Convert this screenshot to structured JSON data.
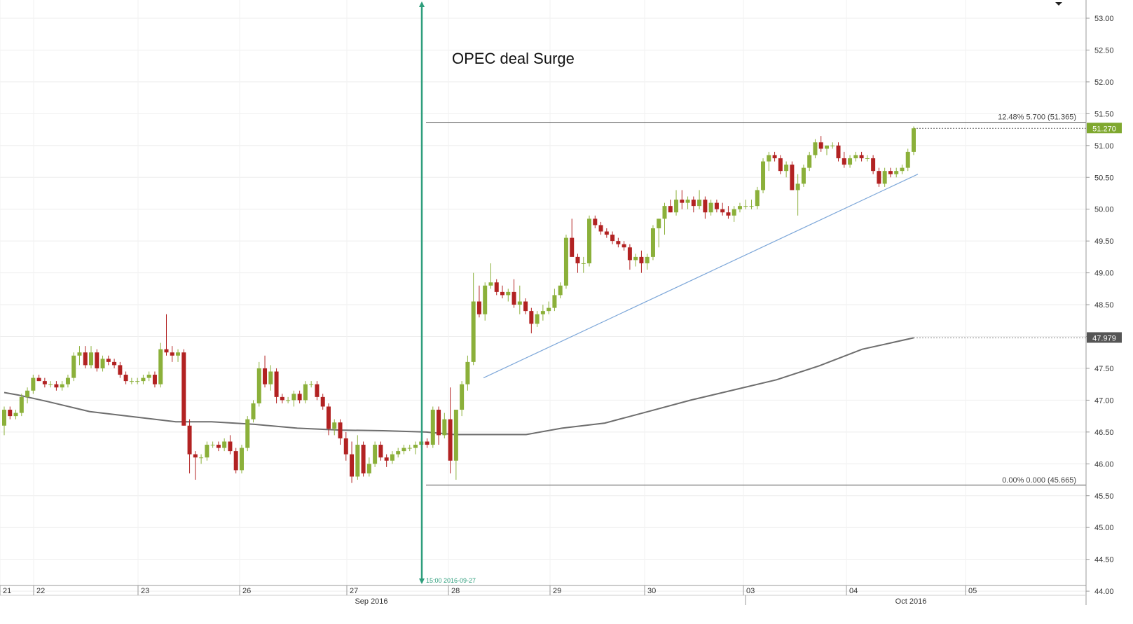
{
  "chart_data": {
    "type": "candlestick",
    "y_axis": {
      "ticks": [
        "53.00",
        "52.50",
        "52.00",
        "51.50",
        "51.00",
        "50.50",
        "50.00",
        "49.50",
        "49.00",
        "48.50",
        "48.00",
        "47.50",
        "47.00",
        "46.50",
        "46.00",
        "45.50",
        "45.00",
        "44.50",
        "44.00"
      ],
      "range": [
        43.75,
        53.3
      ]
    },
    "x_axis": {
      "day_labels": [
        "21",
        "22",
        "23",
        "26",
        "27",
        "28",
        "29",
        "30",
        "03",
        "04",
        "05"
      ],
      "month_labels": [
        "Sep 2016",
        "Oct 2016"
      ]
    },
    "annotation_text": "OPEC deal Surge",
    "vertical_marker_label": "15:00 2016-09-27",
    "fibonacci": {
      "top": {
        "label": "12.48% 5.700 (51.365)",
        "value": 51.365
      },
      "bottom": {
        "label": "0.00% 0.000 (45.665)",
        "value": 45.665
      }
    },
    "last_price_tag": "51.270",
    "last_price": 51.27,
    "ma_tag": "47.979",
    "ma_last": 47.979,
    "candles": [
      [
        46.6,
        46.9,
        46.45,
        46.85
      ],
      [
        46.85,
        46.9,
        46.7,
        46.75
      ],
      [
        46.75,
        46.85,
        46.7,
        46.8
      ],
      [
        46.8,
        47.1,
        46.75,
        47.05
      ],
      [
        47.05,
        47.2,
        46.95,
        47.15
      ],
      [
        47.15,
        47.4,
        47.1,
        47.35
      ],
      [
        47.35,
        47.4,
        47.3,
        47.3
      ],
      [
        47.3,
        47.35,
        47.2,
        47.25
      ],
      [
        47.25,
        47.3,
        47.2,
        47.25
      ],
      [
        47.25,
        47.3,
        47.15,
        47.2
      ],
      [
        47.2,
        47.3,
        47.15,
        47.25
      ],
      [
        47.25,
        47.4,
        47.2,
        47.35
      ],
      [
        47.35,
        47.75,
        47.3,
        47.7
      ],
      [
        47.7,
        47.85,
        47.55,
        47.75
      ],
      [
        47.75,
        47.85,
        47.5,
        47.55
      ],
      [
        47.55,
        47.85,
        47.5,
        47.75
      ],
      [
        47.75,
        47.8,
        47.45,
        47.5
      ],
      [
        47.5,
        47.7,
        47.45,
        47.65
      ],
      [
        47.65,
        47.7,
        47.55,
        47.6
      ],
      [
        47.6,
        47.65,
        47.5,
        47.55
      ],
      [
        47.55,
        47.6,
        47.35,
        47.4
      ],
      [
        47.4,
        47.45,
        47.25,
        47.3
      ],
      [
        47.3,
        47.35,
        47.25,
        47.3
      ],
      [
        47.3,
        47.35,
        47.25,
        47.3
      ],
      [
        47.3,
        47.4,
        47.25,
        47.35
      ],
      [
        47.35,
        47.45,
        47.3,
        47.4
      ],
      [
        47.4,
        47.45,
        47.2,
        47.25
      ],
      [
        47.25,
        47.9,
        47.2,
        47.8
      ],
      [
        47.8,
        48.35,
        47.7,
        47.75
      ],
      [
        47.75,
        47.85,
        47.6,
        47.7
      ],
      [
        47.7,
        47.8,
        47.6,
        47.75
      ],
      [
        47.75,
        47.8,
        46.6,
        46.6
      ],
      [
        46.6,
        46.7,
        45.85,
        46.15
      ],
      [
        46.15,
        46.2,
        45.75,
        46.1
      ],
      [
        46.1,
        46.15,
        46.0,
        46.1
      ],
      [
        46.1,
        46.35,
        46.05,
        46.3
      ],
      [
        46.3,
        46.35,
        46.25,
        46.3
      ],
      [
        46.3,
        46.35,
        46.2,
        46.25
      ],
      [
        46.25,
        46.4,
        46.2,
        46.35
      ],
      [
        46.35,
        46.45,
        46.15,
        46.2
      ],
      [
        46.2,
        46.25,
        45.85,
        45.9
      ],
      [
        45.9,
        46.3,
        45.85,
        46.25
      ],
      [
        46.25,
        46.75,
        46.2,
        46.7
      ],
      [
        46.7,
        47.0,
        46.65,
        46.95
      ],
      [
        46.95,
        47.6,
        46.9,
        47.5
      ],
      [
        47.5,
        47.7,
        47.2,
        47.25
      ],
      [
        47.25,
        47.55,
        47.15,
        47.45
      ],
      [
        47.45,
        47.5,
        46.95,
        47.05
      ],
      [
        47.05,
        47.1,
        46.95,
        47.0
      ],
      [
        47.0,
        47.05,
        46.95,
        47.0
      ],
      [
        47.0,
        47.15,
        46.9,
        47.1
      ],
      [
        47.1,
        47.15,
        46.95,
        47.0
      ],
      [
        47.0,
        47.3,
        46.95,
        47.25
      ],
      [
        47.25,
        47.3,
        47.2,
        47.25
      ],
      [
        47.25,
        47.3,
        47.0,
        47.05
      ],
      [
        47.05,
        47.1,
        46.85,
        46.9
      ],
      [
        46.9,
        46.95,
        46.45,
        46.55
      ],
      [
        46.55,
        46.7,
        46.45,
        46.65
      ],
      [
        46.65,
        46.7,
        46.3,
        46.4
      ],
      [
        46.4,
        46.5,
        46.05,
        46.15
      ],
      [
        46.15,
        46.35,
        45.7,
        45.8
      ],
      [
        45.8,
        46.45,
        45.75,
        46.3
      ],
      [
        46.3,
        46.35,
        45.8,
        45.85
      ],
      [
        45.85,
        46.1,
        45.8,
        46.0
      ],
      [
        46.0,
        46.35,
        45.95,
        46.3
      ],
      [
        46.3,
        46.35,
        46.05,
        46.1
      ],
      [
        46.1,
        46.15,
        45.95,
        46.05
      ],
      [
        46.05,
        46.2,
        46.0,
        46.15
      ],
      [
        46.15,
        46.25,
        46.1,
        46.2
      ],
      [
        46.2,
        46.3,
        46.15,
        46.25
      ],
      [
        46.25,
        46.3,
        46.2,
        46.25
      ],
      [
        46.25,
        46.35,
        46.15,
        46.3
      ],
      [
        46.3,
        46.4,
        46.25,
        46.35
      ],
      [
        46.35,
        46.4,
        46.25,
        46.3
      ],
      [
        46.3,
        46.9,
        46.25,
        46.85
      ],
      [
        46.85,
        46.9,
        46.3,
        46.45
      ],
      [
        46.45,
        46.8,
        46.4,
        46.7
      ],
      [
        46.7,
        47.2,
        45.85,
        46.05
      ],
      [
        46.05,
        46.85,
        45.75,
        46.85
      ],
      [
        46.85,
        47.3,
        46.75,
        47.25
      ],
      [
        47.25,
        47.7,
        47.15,
        47.6
      ],
      [
        47.6,
        49.0,
        47.55,
        48.55
      ],
      [
        48.55,
        48.8,
        48.3,
        48.35
      ],
      [
        48.35,
        48.85,
        48.25,
        48.8
      ],
      [
        48.8,
        49.15,
        48.75,
        48.85
      ],
      [
        48.85,
        48.9,
        48.65,
        48.7
      ],
      [
        48.7,
        48.8,
        48.6,
        48.65
      ],
      [
        48.65,
        48.75,
        48.55,
        48.7
      ],
      [
        48.7,
        48.9,
        48.45,
        48.5
      ],
      [
        48.5,
        48.8,
        48.35,
        48.55
      ],
      [
        48.55,
        48.6,
        48.35,
        48.4
      ],
      [
        48.4,
        48.45,
        48.05,
        48.2
      ],
      [
        48.2,
        48.4,
        48.15,
        48.35
      ],
      [
        48.35,
        48.5,
        48.25,
        48.4
      ],
      [
        48.4,
        48.55,
        48.35,
        48.45
      ],
      [
        48.45,
        48.75,
        48.4,
        48.65
      ],
      [
        48.65,
        48.85,
        48.6,
        48.8
      ],
      [
        48.8,
        49.6,
        48.75,
        49.55
      ],
      [
        49.55,
        49.85,
        49.3,
        49.25
      ],
      [
        49.25,
        49.3,
        49.0,
        49.15
      ],
      [
        49.15,
        49.25,
        49.0,
        49.15
      ],
      [
        49.15,
        49.9,
        49.1,
        49.85
      ],
      [
        49.85,
        49.9,
        49.7,
        49.75
      ],
      [
        49.75,
        49.8,
        49.6,
        49.65
      ],
      [
        49.65,
        49.7,
        49.55,
        49.6
      ],
      [
        49.6,
        49.65,
        49.45,
        49.5
      ],
      [
        49.5,
        49.55,
        49.4,
        49.45
      ],
      [
        49.45,
        49.5,
        49.35,
        49.4
      ],
      [
        49.4,
        49.45,
        49.05,
        49.2
      ],
      [
        49.2,
        49.3,
        49.1,
        49.25
      ],
      [
        49.25,
        49.35,
        49.0,
        49.15
      ],
      [
        49.15,
        49.3,
        49.05,
        49.25
      ],
      [
        49.25,
        49.75,
        49.2,
        49.7
      ],
      [
        49.7,
        49.85,
        49.4,
        49.85
      ],
      [
        49.85,
        50.1,
        49.6,
        50.05
      ],
      [
        50.05,
        50.15,
        49.95,
        49.95
      ],
      [
        49.95,
        50.3,
        49.9,
        50.15
      ],
      [
        50.15,
        50.3,
        50.0,
        50.1
      ],
      [
        50.1,
        50.2,
        50.0,
        50.15
      ],
      [
        50.15,
        50.2,
        49.95,
        50.05
      ],
      [
        50.05,
        50.3,
        50.0,
        50.15
      ],
      [
        50.15,
        50.2,
        49.85,
        49.95
      ],
      [
        49.95,
        50.15,
        49.9,
        50.1
      ],
      [
        50.1,
        50.15,
        49.95,
        50.0
      ],
      [
        50.0,
        50.1,
        49.9,
        49.95
      ],
      [
        49.95,
        50.05,
        49.85,
        49.9
      ],
      [
        49.9,
        50.05,
        49.8,
        50.0
      ],
      [
        50.0,
        50.1,
        49.95,
        50.05
      ],
      [
        50.05,
        50.15,
        50.0,
        50.05
      ],
      [
        50.05,
        50.15,
        50.0,
        50.05
      ],
      [
        50.05,
        50.35,
        50.0,
        50.3
      ],
      [
        50.3,
        50.8,
        50.25,
        50.75
      ],
      [
        50.75,
        50.9,
        50.6,
        50.85
      ],
      [
        50.85,
        50.9,
        50.75,
        50.8
      ],
      [
        50.8,
        50.85,
        50.55,
        50.6
      ],
      [
        50.6,
        50.75,
        50.5,
        50.7
      ],
      [
        50.7,
        50.75,
        50.3,
        50.3
      ],
      [
        50.3,
        50.55,
        49.9,
        50.4
      ],
      [
        50.4,
        50.7,
        50.35,
        50.65
      ],
      [
        50.65,
        50.9,
        50.6,
        50.85
      ],
      [
        50.85,
        51.1,
        50.8,
        51.05
      ],
      [
        51.05,
        51.15,
        50.9,
        50.95
      ],
      [
        50.95,
        51.0,
        50.85,
        51.0
      ],
      [
        51.0,
        51.05,
        50.95,
        51.0
      ],
      [
        51.0,
        51.05,
        50.75,
        50.8
      ],
      [
        50.8,
        50.9,
        50.65,
        50.7
      ],
      [
        50.7,
        50.85,
        50.65,
        50.8
      ],
      [
        50.8,
        50.9,
        50.75,
        50.85
      ],
      [
        50.85,
        50.9,
        50.75,
        50.8
      ],
      [
        50.8,
        50.85,
        50.75,
        50.8
      ],
      [
        50.8,
        50.85,
        50.55,
        50.6
      ],
      [
        50.6,
        50.65,
        50.35,
        50.4
      ],
      [
        50.4,
        50.65,
        50.35,
        50.6
      ],
      [
        50.6,
        50.65,
        50.5,
        50.55
      ],
      [
        50.55,
        50.65,
        50.5,
        50.6
      ],
      [
        50.6,
        50.7,
        50.55,
        50.65
      ],
      [
        50.65,
        50.95,
        50.6,
        50.9
      ],
      [
        50.9,
        51.3,
        50.85,
        51.27
      ]
    ],
    "moving_average": [
      [
        0,
        47.12
      ],
      [
        20,
        47.08
      ],
      [
        60,
        46.98
      ],
      [
        120,
        46.82
      ],
      [
        180,
        46.74
      ],
      [
        240,
        46.66
      ],
      [
        290,
        46.66
      ],
      [
        350,
        46.62
      ],
      [
        410,
        46.56
      ],
      [
        470,
        46.53
      ],
      [
        530,
        46.52
      ],
      [
        590,
        46.5
      ],
      [
        630,
        46.46
      ],
      [
        680,
        46.46
      ],
      [
        730,
        46.46
      ],
      [
        780,
        46.56
      ],
      [
        840,
        46.64
      ],
      [
        900,
        46.82
      ],
      [
        960,
        47.0
      ],
      [
        1020,
        47.16
      ],
      [
        1080,
        47.32
      ],
      [
        1140,
        47.54
      ],
      [
        1200,
        47.8
      ],
      [
        1272,
        47.979
      ]
    ]
  }
}
